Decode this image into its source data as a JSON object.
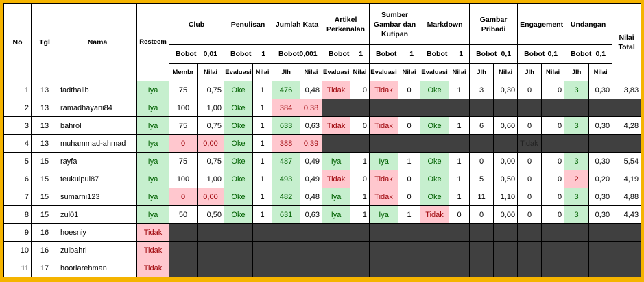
{
  "header": {
    "fixed": [
      "No",
      "Tgl",
      "Nama",
      "Resteem"
    ],
    "total": "Nilai Total",
    "groups": [
      {
        "title": "Club",
        "bobot_label": "Bobot",
        "bobot": "0,01",
        "sub": [
          "Membr",
          "Nilai"
        ]
      },
      {
        "title": "Penulisan",
        "bobot_label": "Bobot",
        "bobot": "1",
        "sub": [
          "Evaluasi",
          "Nilai"
        ]
      },
      {
        "title": "Jumlah Kata",
        "bobot_label": "Bobot",
        "bobot": "0,001",
        "sub": [
          "Jlh",
          "Nilai"
        ]
      },
      {
        "title": "Artikel Perkenalan",
        "bobot_label": "Bobot",
        "bobot": "1",
        "sub": [
          "Evaluasi",
          "Nilai"
        ]
      },
      {
        "title": "Sumber Gambar dan Kutipan",
        "bobot_label": "Bobot",
        "bobot": "1",
        "sub": [
          "Evaluasi",
          "Nilai"
        ]
      },
      {
        "title": "Markdown",
        "bobot_label": "Bobot",
        "bobot": "1",
        "sub": [
          "Evaluasi",
          "Nilai"
        ]
      },
      {
        "title": "Gambar Pribadi",
        "bobot_label": "Bobot",
        "bobot": "0,1",
        "sub": [
          "Jlh",
          "Nilai"
        ]
      },
      {
        "title": "Engagement",
        "bobot_label": "Bobot",
        "bobot": "0,1",
        "sub": [
          "Jlh",
          "Nilai"
        ]
      },
      {
        "title": "Undangan",
        "bobot_label": "Bobot",
        "bobot": "0,1",
        "sub": [
          "Jlh",
          "Nilai"
        ]
      }
    ]
  },
  "rows": [
    {
      "cells": [
        "1",
        "13",
        "fadthalib",
        "Iya",
        "75",
        "0,75",
        "Oke",
        "1",
        "476",
        "0,48",
        "Tidak",
        "0",
        "Tidak",
        "0",
        "Oke",
        "1",
        "3",
        "0,30",
        "0",
        "0",
        "3",
        "0,30",
        "3,83"
      ],
      "green": [
        3,
        6,
        8,
        14,
        20
      ],
      "red": [
        10,
        12
      ]
    },
    {
      "cells": [
        "2",
        "13",
        "ramadhayani84",
        "Iya",
        "100",
        "1,00",
        "Oke",
        "1",
        "384",
        "0,38",
        null,
        null,
        null,
        null,
        null,
        null,
        null,
        null,
        null,
        null,
        null,
        null,
        null
      ],
      "green": [
        3,
        6
      ],
      "red": [
        8,
        9
      ]
    },
    {
      "cells": [
        "3",
        "13",
        "bahrol",
        "Iya",
        "75",
        "0,75",
        "Oke",
        "1",
        "633",
        "0,63",
        "Tidak",
        "0",
        "Tidak",
        "0",
        "Oke",
        "1",
        "6",
        "0,60",
        "0",
        "0",
        "3",
        "0,30",
        "4,28"
      ],
      "green": [
        3,
        6,
        8,
        14,
        20
      ],
      "red": [
        10,
        12
      ]
    },
    {
      "cells": [
        "4",
        "13",
        "muhammad-ahmad",
        "Iya",
        "0",
        "0,00",
        "Oke",
        "1",
        "388",
        "0,39",
        null,
        null,
        null,
        null,
        null,
        null,
        null,
        null,
        "Tidak",
        null,
        null,
        null,
        null
      ],
      "green": [
        3,
        6
      ],
      "red": [
        4,
        5,
        8,
        9
      ],
      "dark": [
        18
      ]
    },
    {
      "cells": [
        "5",
        "15",
        "rayfa",
        "Iya",
        "75",
        "0,75",
        "Oke",
        "1",
        "487",
        "0,49",
        "Iya",
        "1",
        "Iya",
        "1",
        "Oke",
        "1",
        "0",
        "0,00",
        "0",
        "0",
        "3",
        "0,30",
        "5,54"
      ],
      "green": [
        3,
        6,
        8,
        10,
        12,
        14,
        20
      ],
      "red": []
    },
    {
      "cells": [
        "6",
        "15",
        "teukuipul87",
        "Iya",
        "100",
        "1,00",
        "Oke",
        "1",
        "493",
        "0,49",
        "Tidak",
        "0",
        "Tidak",
        "0",
        "Oke",
        "1",
        "5",
        "0,50",
        "0",
        "0",
        "2",
        "0,20",
        "4,19"
      ],
      "green": [
        3,
        6,
        8,
        14
      ],
      "red": [
        10,
        12,
        20
      ]
    },
    {
      "cells": [
        "7",
        "15",
        "sumarni123",
        "Iya",
        "0",
        "0,00",
        "Oke",
        "1",
        "482",
        "0,48",
        "Iya",
        "1",
        "Tidak",
        "0",
        "Oke",
        "1",
        "11",
        "1,10",
        "0",
        "0",
        "3",
        "0,30",
        "4,88"
      ],
      "green": [
        3,
        6,
        8,
        10,
        14,
        20
      ],
      "red": [
        4,
        5,
        12
      ]
    },
    {
      "cells": [
        "8",
        "15",
        "zul01",
        "Iya",
        "50",
        "0,50",
        "Oke",
        "1",
        "631",
        "0,63",
        "Iya",
        "1",
        "Iya",
        "1",
        "Tidak",
        "0",
        "0",
        "0,00",
        "0",
        "0",
        "3",
        "0,30",
        "4,43"
      ],
      "green": [
        3,
        6,
        8,
        10,
        12,
        20
      ],
      "red": [
        14
      ]
    },
    {
      "cells": [
        "9",
        "16",
        "hoesniy",
        "Tidak",
        null,
        null,
        null,
        null,
        null,
        null,
        null,
        null,
        null,
        null,
        null,
        null,
        null,
        null,
        null,
        null,
        null,
        null,
        null
      ],
      "green": [],
      "red": [
        3
      ]
    },
    {
      "cells": [
        "10",
        "16",
        "zulbahri",
        "Tidak",
        null,
        null,
        null,
        null,
        null,
        null,
        null,
        null,
        null,
        null,
        null,
        null,
        null,
        null,
        null,
        null,
        null,
        null,
        null
      ],
      "green": [],
      "red": [
        3
      ]
    },
    {
      "cells": [
        "11",
        "17",
        "hooriarehman",
        "Tidak",
        null,
        null,
        null,
        null,
        null,
        null,
        null,
        null,
        null,
        null,
        null,
        null,
        null,
        null,
        null,
        null,
        null,
        null,
        null
      ],
      "green": [],
      "red": [
        3
      ]
    }
  ]
}
